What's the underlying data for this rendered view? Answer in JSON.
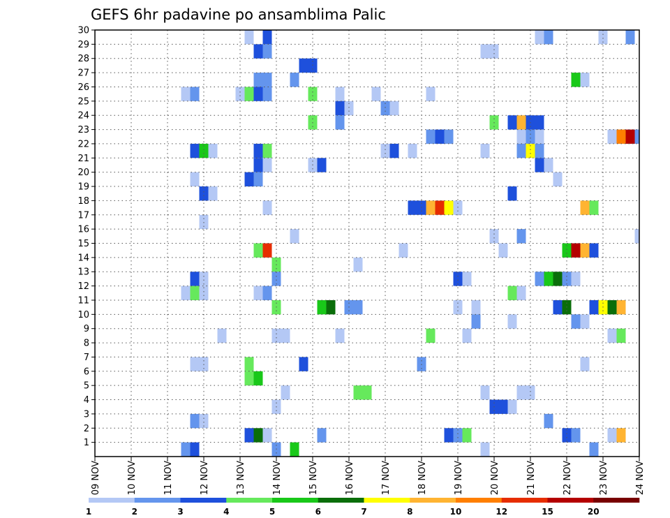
{
  "chart_data": {
    "type": "heatmap",
    "title": "GEFS 6hr padavine po ansamblima Palic",
    "xlabel": "",
    "ylabel": "",
    "x_tick_labels": [
      "09 NOV",
      "10 NOV",
      "11 NOV",
      "12 NOV",
      "13 NOV",
      "14 NOV",
      "15 NOV",
      "16 NOV",
      "17 NOV",
      "18 NOV",
      "19 NOV",
      "20 NOV",
      "21 NOV",
      "22 NOV",
      "23 NOV",
      "24 NOV"
    ],
    "xlim": [
      0,
      60
    ],
    "ylim": [
      0,
      30
    ],
    "y_ticks": [
      1,
      2,
      3,
      4,
      5,
      6,
      7,
      8,
      9,
      10,
      11,
      12,
      13,
      14,
      15,
      16,
      17,
      18,
      19,
      20,
      21,
      22,
      23,
      24,
      25,
      26,
      27,
      28,
      29,
      30
    ],
    "grid": true,
    "colorbar": {
      "labels": [
        "1",
        "2",
        "3",
        "4",
        "5",
        "6",
        "7",
        "8",
        "10",
        "12",
        "15",
        "20"
      ],
      "colors": [
        "#b4c8f5",
        "#6495ed",
        "#1e50dc",
        "#66e95c",
        "#19c819",
        "#0a6e0a",
        "#ffff00",
        "#ffb432",
        "#ff7f00",
        "#e62d00",
        "#b40000",
        "#780000"
      ]
    },
    "cells": [
      [
        53,
        30,
        9
      ],
      [
        54,
        30,
        10
      ],
      [
        51,
        30,
        1
      ],
      [
        57,
        30,
        1
      ],
      [
        47,
        30,
        1
      ],
      [
        44,
        30,
        2
      ],
      [
        49,
        30,
        2
      ],
      [
        19,
        29,
        3
      ],
      [
        17,
        29,
        1
      ],
      [
        49,
        29,
        1
      ],
      [
        50,
        29,
        2
      ],
      [
        56,
        29,
        1
      ],
      [
        59,
        29,
        2
      ],
      [
        18,
        28,
        3
      ],
      [
        19,
        28,
        2
      ],
      [
        43,
        28,
        1
      ],
      [
        44,
        28,
        1
      ],
      [
        23,
        27,
        3
      ],
      [
        24,
        27,
        3
      ],
      [
        18,
        26,
        2
      ],
      [
        19,
        26,
        2
      ],
      [
        22,
        26,
        2
      ],
      [
        53,
        26,
        5
      ],
      [
        54,
        26,
        1
      ],
      [
        10,
        25,
        1
      ],
      [
        11,
        25,
        2
      ],
      [
        16,
        25,
        1
      ],
      [
        17,
        25,
        4
      ],
      [
        18,
        25,
        3
      ],
      [
        19,
        25,
        2
      ],
      [
        24,
        25,
        4
      ],
      [
        27,
        25,
        1
      ],
      [
        31,
        25,
        1
      ],
      [
        37,
        25,
        1
      ],
      [
        27,
        24,
        3
      ],
      [
        28,
        24,
        1
      ],
      [
        32,
        24,
        2
      ],
      [
        33,
        24,
        1
      ],
      [
        27,
        23,
        2
      ],
      [
        24,
        23,
        4
      ],
      [
        44,
        23,
        4
      ],
      [
        46,
        23,
        3
      ],
      [
        47,
        23,
        8
      ],
      [
        48,
        23,
        3
      ],
      [
        49,
        23,
        3
      ],
      [
        37,
        22,
        2
      ],
      [
        38,
        22,
        3
      ],
      [
        39,
        22,
        2
      ],
      [
        47,
        22,
        1
      ],
      [
        48,
        22,
        2
      ],
      [
        49,
        22,
        1
      ],
      [
        57,
        22,
        1
      ],
      [
        58,
        22,
        9
      ],
      [
        59,
        22,
        11
      ],
      [
        60,
        22,
        2
      ],
      [
        11,
        21,
        3
      ],
      [
        12,
        21,
        5
      ],
      [
        13,
        21,
        1
      ],
      [
        18,
        21,
        3
      ],
      [
        19,
        21,
        4
      ],
      [
        32,
        21,
        1
      ],
      [
        33,
        21,
        3
      ],
      [
        35,
        21,
        1
      ],
      [
        43,
        21,
        1
      ],
      [
        47,
        21,
        2
      ],
      [
        48,
        21,
        7
      ],
      [
        49,
        21,
        2
      ],
      [
        18,
        20,
        3
      ],
      [
        19,
        20,
        1
      ],
      [
        24,
        20,
        1
      ],
      [
        25,
        20,
        3
      ],
      [
        49,
        20,
        3
      ],
      [
        50,
        20,
        1
      ],
      [
        11,
        19,
        1
      ],
      [
        17,
        19,
        3
      ],
      [
        18,
        19,
        2
      ],
      [
        51,
        19,
        1
      ],
      [
        12,
        18,
        3
      ],
      [
        13,
        18,
        1
      ],
      [
        46,
        18,
        3
      ],
      [
        19,
        17,
        1
      ],
      [
        35,
        17,
        3
      ],
      [
        36,
        17,
        3
      ],
      [
        37,
        17,
        8
      ],
      [
        38,
        17,
        10
      ],
      [
        39,
        17,
        7
      ],
      [
        40,
        17,
        1
      ],
      [
        54,
        17,
        8
      ],
      [
        55,
        17,
        4
      ],
      [
        12,
        16,
        1
      ],
      [
        22,
        15,
        1
      ],
      [
        44,
        15,
        1
      ],
      [
        47,
        15,
        2
      ],
      [
        60,
        15,
        1
      ],
      [
        18,
        14,
        4
      ],
      [
        19,
        14,
        10
      ],
      [
        34,
        14,
        1
      ],
      [
        45,
        14,
        1
      ],
      [
        52,
        14,
        5
      ],
      [
        53,
        14,
        11
      ],
      [
        54,
        14,
        8
      ],
      [
        55,
        14,
        3
      ],
      [
        20,
        13,
        4
      ],
      [
        29,
        13,
        1
      ],
      [
        11,
        12,
        3
      ],
      [
        12,
        12,
        1
      ],
      [
        20,
        12,
        2
      ],
      [
        40,
        12,
        3
      ],
      [
        41,
        12,
        1
      ],
      [
        49,
        12,
        2
      ],
      [
        50,
        12,
        5
      ],
      [
        51,
        12,
        6
      ],
      [
        52,
        12,
        2
      ],
      [
        53,
        12,
        1
      ],
      [
        10,
        11,
        1
      ],
      [
        11,
        11,
        4
      ],
      [
        12,
        11,
        1
      ],
      [
        18,
        11,
        1
      ],
      [
        19,
        11,
        2
      ],
      [
        46,
        11,
        4
      ],
      [
        47,
        11,
        1
      ],
      [
        20,
        10,
        4
      ],
      [
        25,
        10,
        5
      ],
      [
        26,
        10,
        6
      ],
      [
        28,
        10,
        2
      ],
      [
        29,
        10,
        2
      ],
      [
        40,
        10,
        1
      ],
      [
        42,
        10,
        1
      ],
      [
        51,
        10,
        3
      ],
      [
        52,
        10,
        6
      ],
      [
        55,
        10,
        3
      ],
      [
        56,
        10,
        7
      ],
      [
        57,
        10,
        6
      ],
      [
        58,
        10,
        8
      ],
      [
        42,
        9,
        2
      ],
      [
        46,
        9,
        1
      ],
      [
        53,
        9,
        2
      ],
      [
        54,
        9,
        1
      ],
      [
        14,
        8,
        1
      ],
      [
        20,
        8,
        1
      ],
      [
        21,
        8,
        1
      ],
      [
        27,
        8,
        1
      ],
      [
        37,
        8,
        4
      ],
      [
        41,
        8,
        1
      ],
      [
        57,
        8,
        1
      ],
      [
        58,
        8,
        4
      ],
      [
        11,
        6,
        1
      ],
      [
        12,
        6,
        1
      ],
      [
        17,
        6,
        4
      ],
      [
        23,
        6,
        3
      ],
      [
        36,
        6,
        2
      ],
      [
        54,
        6,
        1
      ],
      [
        17,
        5,
        4
      ],
      [
        18,
        5,
        5
      ],
      [
        21,
        4,
        1
      ],
      [
        29,
        4,
        4
      ],
      [
        30,
        4,
        4
      ],
      [
        43,
        4,
        1
      ],
      [
        47,
        4,
        1
      ],
      [
        48,
        4,
        1
      ],
      [
        20,
        3,
        1
      ],
      [
        44,
        3,
        3
      ],
      [
        45,
        3,
        3
      ],
      [
        46,
        3,
        1
      ],
      [
        11,
        2,
        2
      ],
      [
        12,
        2,
        1
      ],
      [
        50,
        2,
        2
      ],
      [
        17,
        1,
        3
      ],
      [
        18,
        1,
        6
      ],
      [
        19,
        1,
        1
      ],
      [
        25,
        1,
        2
      ],
      [
        39,
        1,
        3
      ],
      [
        40,
        1,
        2
      ],
      [
        41,
        1,
        4
      ],
      [
        52,
        1,
        3
      ],
      [
        53,
        1,
        2
      ],
      [
        57,
        1,
        1
      ],
      [
        58,
        1,
        8
      ],
      [
        10,
        0,
        2
      ],
      [
        11,
        0,
        3
      ],
      [
        20,
        0,
        2
      ],
      [
        22,
        0,
        5
      ],
      [
        43,
        0,
        1
      ],
      [
        55,
        0,
        2
      ]
    ]
  }
}
